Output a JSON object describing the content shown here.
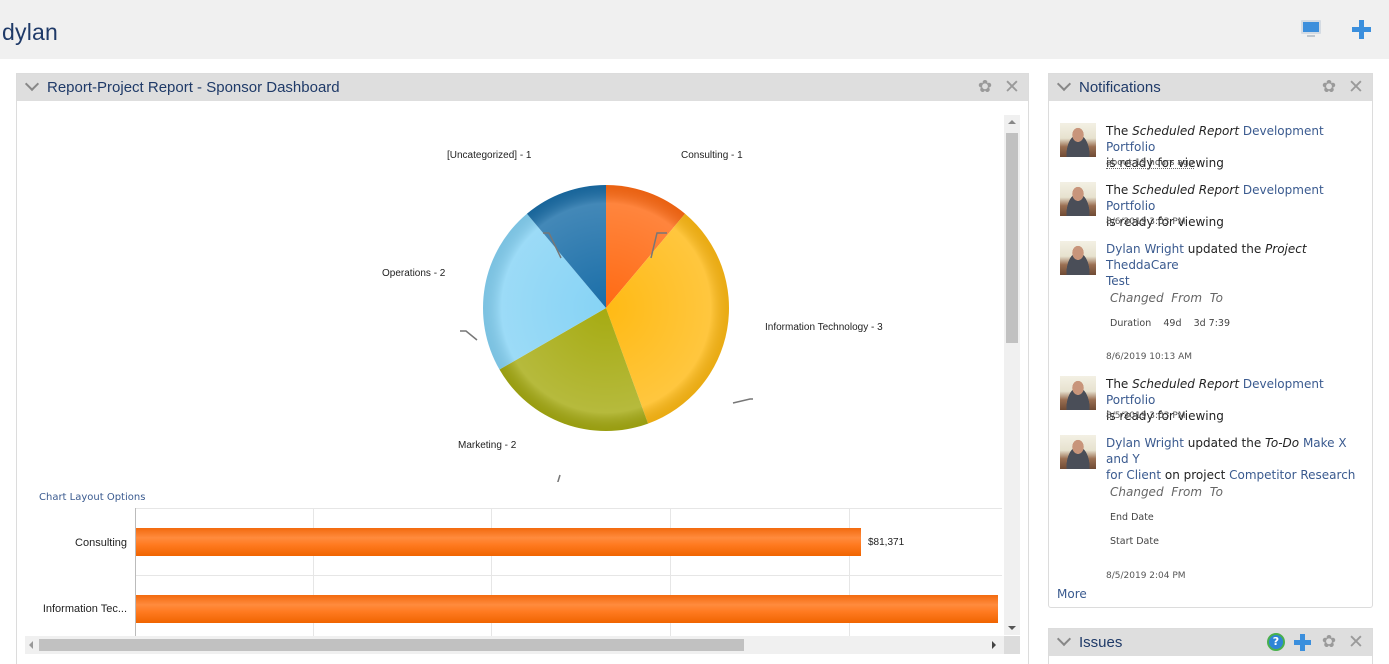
{
  "header": {
    "user_name": "dylan",
    "icons": [
      "monitor-icon",
      "plus-icon"
    ]
  },
  "report_widget": {
    "title": "Report-Project Report - Sponsor Dashboard",
    "icons": [
      "chevron-down-icon",
      "gear-icon",
      "close-icon"
    ],
    "gear_glyph": "✿",
    "close_glyph": "✕",
    "chart_layout_link": "Chart Layout Options"
  },
  "chart_data": [
    {
      "type": "pie",
      "title": "",
      "categories": [
        "Consulting",
        "Information Technology",
        "Marketing",
        "Operations",
        "[Uncategorized]"
      ],
      "values": [
        1,
        3,
        2,
        2,
        1
      ],
      "labels": [
        "Consulting - 1",
        "Information Technology - 3",
        "Marketing - 2",
        "Operations - 2",
        "[Uncategorized] - 1"
      ],
      "colors": [
        "#ff6a13",
        "#ffba14",
        "#a6ab12",
        "#86d3f5",
        "#1a6ea8"
      ]
    },
    {
      "type": "bar",
      "orientation": "horizontal",
      "categories": [
        "Consulting",
        "Information Tec..."
      ],
      "values": [
        81371,
        null
      ],
      "value_labels": [
        "$81,371",
        ""
      ],
      "color": "#ff7a20",
      "grid": true,
      "note": "Second bar extends beyond visible area; its value label is not visible"
    }
  ],
  "notifications": {
    "title": "Notifications",
    "icons": [
      "chevron-down-icon",
      "gear-icon",
      "close-icon"
    ],
    "items": [
      {
        "pre": "The ",
        "type": "Scheduled Report",
        "link": " Development Portfolio",
        "post": "is ready for viewing",
        "time": "about 19 hours ago"
      },
      {
        "pre": "The ",
        "type": "Scheduled Report",
        "link": " Development Portfolio",
        "post": "is ready for viewing",
        "time": "8/6/2019 3:03 PM"
      },
      {
        "actor": "Dylan Wright",
        "verb": " updated the ",
        "type": "Project",
        "link1": " TheddaCare",
        "link2": "Test",
        "changes_header": [
          "Changed",
          "From",
          "To"
        ],
        "changes": [
          {
            "field": "Duration",
            "from": "49d",
            "to": "3d 7:39"
          }
        ],
        "time": "8/6/2019 10:13 AM"
      },
      {
        "pre": "The ",
        "type": "Scheduled Report",
        "link": " Development Portfolio",
        "post": "is ready for viewing",
        "time": "8/5/2019 3:03 PM"
      },
      {
        "actor": "Dylan Wright",
        "verb": " updated the ",
        "type": "To-Do",
        "link1": " Make X and Y",
        "link2": "for Client",
        "on_project": " on project ",
        "project": "Competitor Research",
        "changes_header": [
          "Changed",
          "From",
          "To"
        ],
        "changes": [
          {
            "field": "End Date",
            "from": "",
            "to": ""
          },
          {
            "field": "Start Date",
            "from": "",
            "to": ""
          }
        ],
        "time": "8/5/2019 2:04 PM"
      }
    ],
    "more_label": "More"
  },
  "issues_widget": {
    "title": "Issues",
    "icons": [
      "chevron-down-icon",
      "help-icon",
      "plus-icon",
      "gear-icon",
      "close-icon"
    ],
    "help_glyph": "?"
  }
}
